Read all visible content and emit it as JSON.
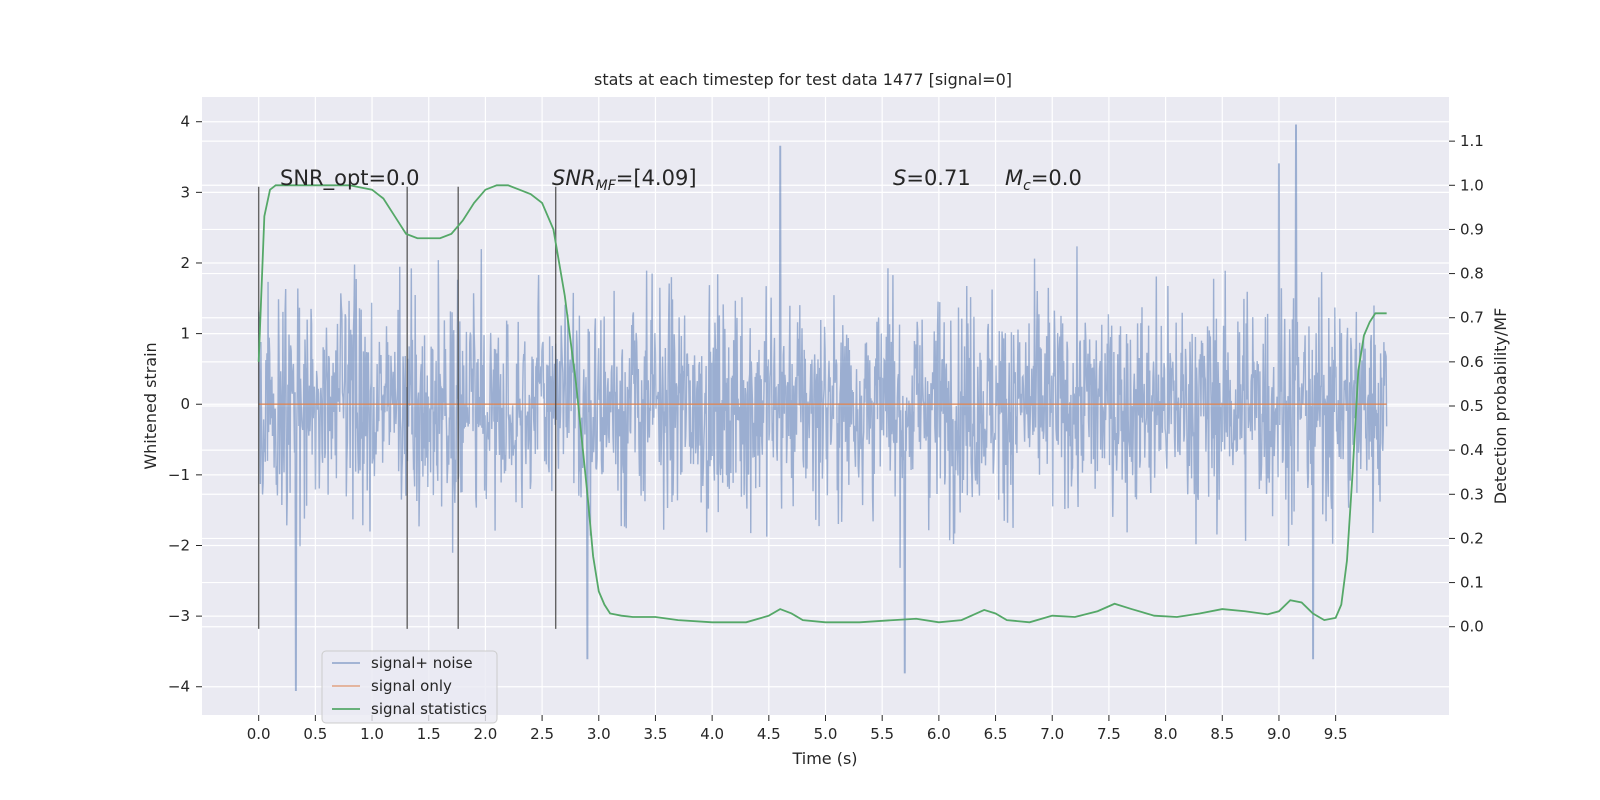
{
  "chart_data": {
    "type": "line",
    "title": "stats at each timestep for test data 1477 [signal=0]",
    "xlabel": "Time (s)",
    "ylabel_left": "Whitened strain",
    "ylabel_right": "Detection probability/MF",
    "xlim": [
      -0.5,
      10.5
    ],
    "ylim_left": [
      -4.4,
      4.35
    ],
    "ylim_right": [
      -0.2,
      1.2
    ],
    "x_ticks": [
      0.0,
      0.5,
      1.0,
      1.5,
      2.0,
      2.5,
      3.0,
      3.5,
      4.0,
      4.5,
      5.0,
      5.5,
      6.0,
      6.5,
      7.0,
      7.5,
      8.0,
      8.5,
      9.0,
      9.5
    ],
    "x_tick_labels": [
      "0.0",
      "0.5",
      "1.0",
      "1.5",
      "2.0",
      "2.5",
      "3.0",
      "3.5",
      "4.0",
      "4.5",
      "5.0",
      "5.5",
      "6.0",
      "6.5",
      "7.0",
      "7.5",
      "8.0",
      "8.5",
      "9.0",
      "9.5"
    ],
    "y_left_ticks": [
      -4,
      -3,
      -2,
      -1,
      0,
      1,
      2,
      3,
      4
    ],
    "y_left_tick_labels": [
      "−4",
      "−3",
      "−2",
      "−1",
      "0",
      "1",
      "2",
      "3",
      "4"
    ],
    "y_right_ticks": [
      0.0,
      0.1,
      0.2,
      0.3,
      0.4,
      0.5,
      0.6,
      0.7,
      0.8,
      0.9,
      1.0,
      1.1
    ],
    "y_right_tick_labels": [
      "0.0",
      "0.1",
      "0.2",
      "0.3",
      "0.4",
      "0.5",
      "0.6",
      "0.7",
      "0.8",
      "0.9",
      "1.0",
      "1.1"
    ],
    "grid": true,
    "legend_position": "lower-left",
    "background": "#eaeaf2",
    "series": [
      {
        "name": "signal+ noise",
        "axis": "left",
        "color": "#4c72b0",
        "style": "dense noise trace, roughly Gaussian, amplitude range about -4.0 to 3.95",
        "time_range": [
          0.0,
          9.95
        ],
        "notable_peaks": [
          [
            4.6,
            3.65
          ],
          [
            9.15,
            3.95
          ],
          [
            9.0,
            3.4
          ]
        ],
        "notable_troughs": [
          [
            0.33,
            -4.05
          ],
          [
            5.7,
            -3.8
          ],
          [
            2.9,
            -3.6
          ],
          [
            9.3,
            -3.6
          ]
        ]
      },
      {
        "name": "signal only",
        "axis": "left",
        "color": "#dd8452",
        "style": "flat line",
        "x": [
          0.0,
          9.95
        ],
        "y": [
          0.0,
          0.0
        ]
      },
      {
        "name": "signal statistics",
        "axis": "right",
        "color": "#55a868",
        "style": "smooth line",
        "x": [
          0.0,
          0.05,
          0.1,
          0.15,
          0.25,
          0.4,
          0.6,
          0.8,
          1.0,
          1.1,
          1.2,
          1.3,
          1.4,
          1.5,
          1.6,
          1.7,
          1.8,
          1.9,
          2.0,
          2.1,
          2.2,
          2.3,
          2.4,
          2.5,
          2.6,
          2.7,
          2.8,
          2.9,
          2.95,
          3.0,
          3.05,
          3.1,
          3.2,
          3.3,
          3.5,
          3.7,
          4.0,
          4.3,
          4.5,
          4.6,
          4.7,
          4.8,
          5.0,
          5.3,
          5.6,
          5.8,
          6.0,
          6.2,
          6.4,
          6.5,
          6.6,
          6.8,
          7.0,
          7.2,
          7.4,
          7.55,
          7.7,
          7.9,
          8.1,
          8.3,
          8.5,
          8.7,
          8.9,
          9.0,
          9.1,
          9.2,
          9.3,
          9.4,
          9.5,
          9.55,
          9.6,
          9.65,
          9.7,
          9.75,
          9.8,
          9.85,
          9.9,
          9.95
        ],
        "y": [
          0.6,
          0.93,
          0.99,
          1.0,
          1.0,
          1.0,
          1.0,
          1.0,
          0.99,
          0.97,
          0.93,
          0.89,
          0.88,
          0.88,
          0.88,
          0.89,
          0.92,
          0.96,
          0.99,
          1.0,
          1.0,
          0.99,
          0.98,
          0.96,
          0.9,
          0.75,
          0.55,
          0.3,
          0.16,
          0.08,
          0.05,
          0.03,
          0.025,
          0.022,
          0.022,
          0.015,
          0.01,
          0.01,
          0.025,
          0.04,
          0.03,
          0.015,
          0.01,
          0.01,
          0.015,
          0.018,
          0.01,
          0.015,
          0.038,
          0.03,
          0.015,
          0.01,
          0.025,
          0.022,
          0.035,
          0.052,
          0.04,
          0.025,
          0.022,
          0.03,
          0.04,
          0.035,
          0.028,
          0.035,
          0.06,
          0.055,
          0.03,
          0.015,
          0.02,
          0.05,
          0.15,
          0.35,
          0.58,
          0.66,
          0.69,
          0.71,
          0.71,
          0.71
        ]
      }
    ],
    "vertical_markers": [
      0.0,
      1.31,
      1.76,
      2.62
    ],
    "annotations": [
      {
        "text": "SNR_opt=0.0",
        "kind": "plain",
        "x": 0.2
      },
      {
        "text_main": "SNR",
        "text_sub": "MF",
        "text_rest": "=[4.09]",
        "kind": "subscript",
        "x": 2.6
      },
      {
        "text_main": "S",
        "text_rest": "=0.71",
        "kind": "italic",
        "x": 5.6
      },
      {
        "text_main": "M",
        "text_sub": "c",
        "text_rest": "=0.0",
        "kind": "subscript",
        "x": 6.6
      }
    ]
  }
}
